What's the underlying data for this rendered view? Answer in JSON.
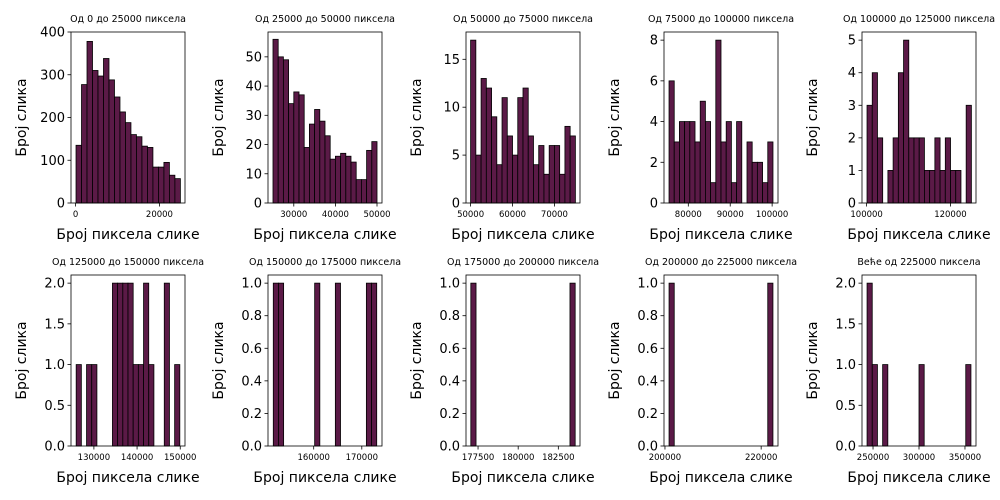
{
  "figure": {
    "bar_color": "#5b1a47",
    "edge_color": "#000000",
    "shared_xlabel": "Број пиксела слике",
    "shared_ylabel": "Број слика"
  },
  "chart_data": [
    {
      "type": "bar",
      "title": "Од 0 до 25000 пиксела",
      "xlabel": "Број пиксела слике",
      "ylabel": "Број слика",
      "xlim": [
        -1100,
        26100
      ],
      "ylim": [
        0,
        400
      ],
      "xticks": [
        {
          "v": 0,
          "label": "0"
        },
        {
          "v": 20000,
          "label": "20000"
        }
      ],
      "yticks": [
        {
          "v": 0,
          "label": "0"
        },
        {
          "v": 100,
          "label": "100"
        },
        {
          "v": 200,
          "label": "200"
        },
        {
          "v": 300,
          "label": "300"
        },
        {
          "v": 400,
          "label": "400"
        }
      ],
      "bin_range": [
        100,
        25000
      ],
      "values": [
        135,
        277,
        378,
        310,
        297,
        338,
        288,
        248,
        213,
        188,
        160,
        155,
        133,
        130,
        84,
        84,
        95,
        65,
        57
      ]
    },
    {
      "type": "bar",
      "title": "Од 25000 до 50000 пиксела",
      "xlabel": "Број пиксела слике",
      "ylabel": "Број слика",
      "xlim": [
        23800,
        51200
      ],
      "ylim": [
        0,
        58.5
      ],
      "xticks": [
        {
          "v": 30000,
          "label": "30000"
        },
        {
          "v": 40000,
          "label": "40000"
        },
        {
          "v": 50000,
          "label": "50000"
        }
      ],
      "yticks": [
        {
          "v": 0,
          "label": "0"
        },
        {
          "v": 10,
          "label": "10"
        },
        {
          "v": 20,
          "label": "20"
        },
        {
          "v": 30,
          "label": "30"
        },
        {
          "v": 40,
          "label": "40"
        },
        {
          "v": 50,
          "label": "50"
        }
      ],
      "bin_range": [
        25000,
        50000
      ],
      "values": [
        56,
        50,
        49,
        34,
        38,
        37,
        19,
        27,
        32,
        28,
        23,
        15,
        16,
        17,
        16,
        14,
        8,
        8,
        18,
        21
      ]
    },
    {
      "type": "bar",
      "title": "Од 50000 до 75000 пиксела",
      "xlabel": "Број пиксела слике",
      "ylabel": "Број слика",
      "xlim": [
        48900,
        76100
      ],
      "ylim": [
        0,
        17.85
      ],
      "xticks": [
        {
          "v": 50000,
          "label": "50000"
        },
        {
          "v": 60000,
          "label": "60000"
        },
        {
          "v": 70000,
          "label": "70000"
        }
      ],
      "yticks": [
        {
          "v": 0,
          "label": "0"
        },
        {
          "v": 5,
          "label": "5"
        },
        {
          "v": 10,
          "label": "10"
        },
        {
          "v": 15,
          "label": "15"
        }
      ],
      "bin_range": [
        50000,
        75000
      ],
      "values": [
        17,
        5,
        13,
        12,
        9,
        4,
        11,
        7,
        5,
        11,
        12,
        7,
        4,
        6,
        3,
        6,
        6,
        3,
        8,
        7
      ]
    },
    {
      "type": "bar",
      "title": "Од 75000 до 100000 пиксела",
      "xlabel": "Број пиксела слике",
      "ylabel": "Број слика",
      "xlim": [
        74200,
        101400
      ],
      "ylim": [
        0,
        8.4
      ],
      "xticks": [
        {
          "v": 80000,
          "label": "80000"
        },
        {
          "v": 90000,
          "label": "90000"
        },
        {
          "v": 100000,
          "label": "100000"
        }
      ],
      "yticks": [
        {
          "v": 0,
          "label": "0"
        },
        {
          "v": 2,
          "label": "2"
        },
        {
          "v": 4,
          "label": "4"
        },
        {
          "v": 6,
          "label": "6"
        },
        {
          "v": 8,
          "label": "8"
        }
      ],
      "bin_range": [
        75400,
        100200
      ],
      "values": [
        6,
        3,
        4,
        4,
        4,
        3,
        5,
        4,
        1,
        8,
        3,
        4,
        1,
        4,
        0,
        3,
        2,
        2,
        1,
        3
      ]
    },
    {
      "type": "bar",
      "title": "Од 100000 до 125000 пиксела",
      "xlabel": "Број пиксела слике",
      "ylabel": "Број слика",
      "xlim": [
        98900,
        126100
      ],
      "ylim": [
        0,
        5.25
      ],
      "xticks": [
        {
          "v": 100000,
          "label": "100000"
        },
        {
          "v": 120000,
          "label": "120000"
        }
      ],
      "yticks": [
        {
          "v": 0,
          "label": "0"
        },
        {
          "v": 1,
          "label": "1"
        },
        {
          "v": 2,
          "label": "2"
        },
        {
          "v": 3,
          "label": "3"
        },
        {
          "v": 4,
          "label": "4"
        },
        {
          "v": 5,
          "label": "5"
        }
      ],
      "bin_range": [
        100100,
        125000
      ],
      "values": [
        3,
        4,
        2,
        0,
        1,
        2,
        4,
        5,
        2,
        2,
        2,
        1,
        1,
        2,
        1,
        2,
        1,
        1,
        0,
        3
      ]
    },
    {
      "type": "bar",
      "title": "Од 125000 до 150000 пиксела",
      "xlabel": "Број пиксела слике",
      "ylabel": "Број слика",
      "xlim": [
        124700,
        151100
      ],
      "ylim": [
        0,
        2.1
      ],
      "xticks": [
        {
          "v": 130000,
          "label": "130000"
        },
        {
          "v": 140000,
          "label": "140000"
        },
        {
          "v": 150000,
          "label": "150000"
        }
      ],
      "yticks": [
        {
          "v": 0,
          "label": "0.0"
        },
        {
          "v": 0.5,
          "label": "0.5"
        },
        {
          "v": 1,
          "label": "1.0"
        },
        {
          "v": 1.5,
          "label": "1.5"
        },
        {
          "v": 2,
          "label": "2.0"
        }
      ],
      "bin_range": [
        125900,
        149900
      ],
      "values": [
        1,
        0,
        1,
        1,
        0,
        0,
        0,
        2,
        2,
        2,
        2,
        1,
        1,
        2,
        1,
        0,
        0,
        2,
        0,
        1
      ]
    },
    {
      "type": "bar",
      "title": "Од 150000 до 175000 пиксела",
      "xlabel": "Број пиксела слике",
      "ylabel": "Број слика",
      "xlim": [
        150500,
        174200
      ],
      "ylim": [
        0,
        1.05
      ],
      "xticks": [
        {
          "v": 160000,
          "label": "160000"
        },
        {
          "v": 170000,
          "label": "170000"
        }
      ],
      "yticks": [
        {
          "v": 0,
          "label": "0.0"
        },
        {
          "v": 0.2,
          "label": "0.2"
        },
        {
          "v": 0.4,
          "label": "0.4"
        },
        {
          "v": 0.6,
          "label": "0.6"
        },
        {
          "v": 0.8,
          "label": "0.8"
        },
        {
          "v": 1,
          "label": "1.0"
        }
      ],
      "bin_range": [
        151600,
        173100
      ],
      "values": [
        1,
        1,
        0,
        0,
        0,
        0,
        0,
        0,
        1,
        0,
        0,
        0,
        1,
        0,
        0,
        0,
        0,
        0,
        1,
        1
      ]
    },
    {
      "type": "bar",
      "title": "Од 175000 до 200000 пиксела",
      "xlabel": "Број пиксела слике",
      "ylabel": "Број слика",
      "xlim": [
        176750,
        183850
      ],
      "ylim": [
        0,
        1.05
      ],
      "xticks": [
        {
          "v": 177500,
          "label": "177500"
        },
        {
          "v": 180000,
          "label": "180000"
        },
        {
          "v": 182500,
          "label": "182500"
        }
      ],
      "yticks": [
        {
          "v": 0,
          "label": "0.0"
        },
        {
          "v": 0.2,
          "label": "0.2"
        },
        {
          "v": 0.4,
          "label": "0.4"
        },
        {
          "v": 0.6,
          "label": "0.6"
        },
        {
          "v": 0.8,
          "label": "0.8"
        },
        {
          "v": 1,
          "label": "1.0"
        }
      ],
      "bin_range": [
        177050,
        183550
      ],
      "values": [
        1,
        0,
        0,
        0,
        0,
        0,
        0,
        0,
        0,
        0,
        0,
        0,
        0,
        0,
        0,
        0,
        0,
        0,
        0,
        1
      ]
    },
    {
      "type": "bar",
      "title": "Од 200000 до 225000 пиксела",
      "xlabel": "Број пиксела слике",
      "ylabel": "Број слика",
      "xlim": [
        199800,
        223500
      ],
      "ylim": [
        0,
        1.05
      ],
      "xticks": [
        {
          "v": 200000,
          "label": "200000"
        },
        {
          "v": 220000,
          "label": "220000"
        }
      ],
      "yticks": [
        {
          "v": 0,
          "label": "0.0"
        },
        {
          "v": 0.2,
          "label": "0.2"
        },
        {
          "v": 0.4,
          "label": "0.4"
        },
        {
          "v": 0.6,
          "label": "0.6"
        },
        {
          "v": 0.8,
          "label": "0.8"
        },
        {
          "v": 1,
          "label": "1.0"
        }
      ],
      "bin_range": [
        200850,
        222450
      ],
      "values": [
        1,
        0,
        0,
        0,
        0,
        0,
        0,
        0,
        0,
        0,
        0,
        0,
        0,
        0,
        0,
        0,
        0,
        0,
        0,
        1
      ]
    },
    {
      "type": "bar",
      "title": "Веће од 225000 пиксела",
      "xlabel": "Број пиксела слике",
      "ylabel": "Број слика",
      "xlim": [
        238000,
        362000
      ],
      "ylim": [
        0,
        2.1
      ],
      "xticks": [
        {
          "v": 250000,
          "label": "250000"
        },
        {
          "v": 300000,
          "label": "300000"
        },
        {
          "v": 350000,
          "label": "350000"
        }
      ],
      "yticks": [
        {
          "v": 0,
          "label": "0.0"
        },
        {
          "v": 0.5,
          "label": "0.5"
        },
        {
          "v": 1,
          "label": "1.0"
        },
        {
          "v": 1.5,
          "label": "1.5"
        },
        {
          "v": 2,
          "label": "2.0"
        }
      ],
      "bin_range": [
        243500,
        356500
      ],
      "values": [
        2,
        1,
        0,
        1,
        0,
        0,
        0,
        0,
        0,
        0,
        1,
        0,
        0,
        0,
        0,
        0,
        0,
        0,
        0,
        1
      ]
    }
  ]
}
